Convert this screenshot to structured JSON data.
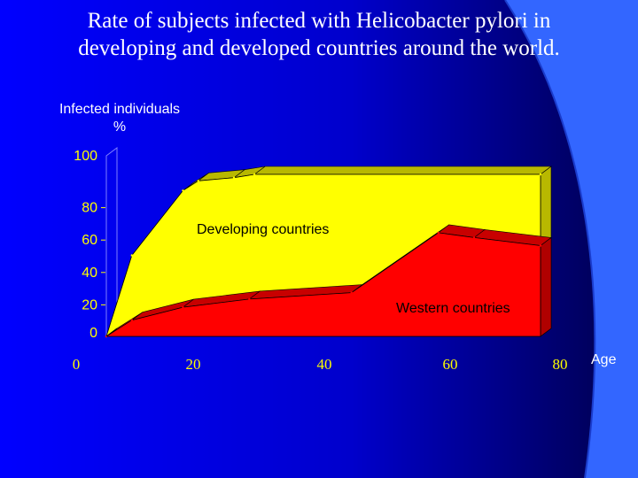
{
  "slide": {
    "title_line1": "Rate of subjects infected with Helicobacter pylori in",
    "title_line2": "developing and developed countries around the world.",
    "y_axis_label_line1": "Infected individuals",
    "y_axis_label_line2": "%"
  },
  "colors": {
    "background_left": "#0000ff",
    "background_right": "#00004a",
    "swoosh": "#3366ff",
    "developing_fill": "#ffff00",
    "developing_side": "#b8b800",
    "western_fill": "#ff0000",
    "western_top": "#c80000",
    "western_side": "#b00000",
    "tick_text": "#ffff00",
    "title_text": "#ffffff"
  },
  "chart_data": {
    "type": "area",
    "title": "Rate of subjects infected with Helicobacter pylori in developing and developed countries around the world.",
    "ylabel": "Infected individuals %",
    "xlabel": "Age",
    "x_ticks": [
      "0",
      "20",
      "40",
      "60",
      "80"
    ],
    "y_ticks": [
      "0",
      "20",
      "40",
      "60",
      "80",
      "100"
    ],
    "xlim": [
      0,
      85
    ],
    "ylim": [
      0,
      100
    ],
    "grid": false,
    "series": [
      {
        "name": "Developing countries",
        "x": [
          0,
          5,
          15,
          18,
          25,
          29,
          85
        ],
        "values": [
          0,
          50,
          90,
          96,
          98,
          100,
          100
        ]
      },
      {
        "name": "Western countries",
        "x": [
          0,
          5,
          15,
          28,
          48,
          65,
          72,
          85
        ],
        "values": [
          0,
          10,
          18,
          23,
          27,
          64,
          61,
          56
        ]
      }
    ]
  }
}
